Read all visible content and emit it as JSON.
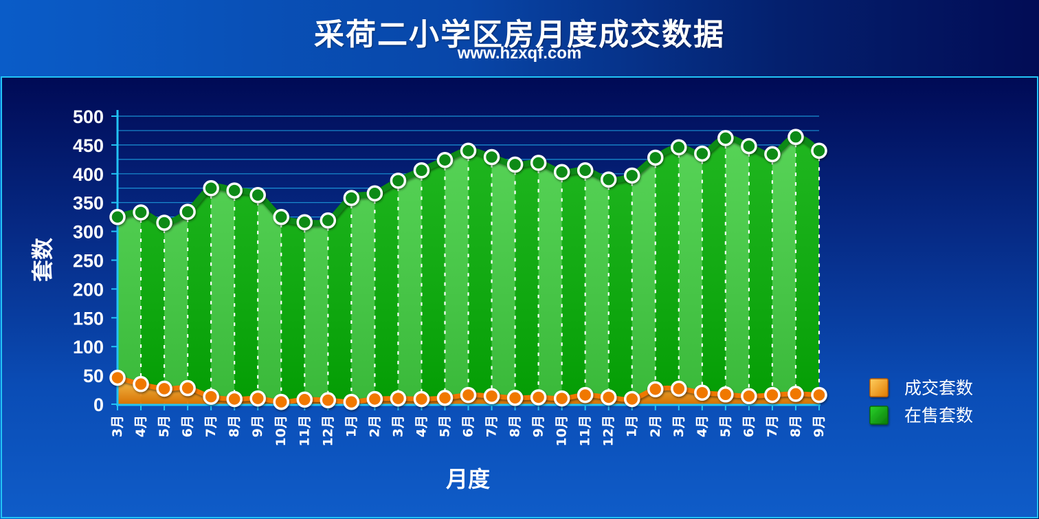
{
  "header": {
    "title": "采荷二小学区房月度成交数据",
    "subtitle": "www.hzxqf.com"
  },
  "chart_data": {
    "type": "area",
    "categories": [
      "3月",
      "4月",
      "5月",
      "6月",
      "7月",
      "8月",
      "9月",
      "10月",
      "11月",
      "12月",
      "1月",
      "2月",
      "3月",
      "4月",
      "5月",
      "6月",
      "7月",
      "8月",
      "9月",
      "10月",
      "11月",
      "12月",
      "1月",
      "2月",
      "3月",
      "4月",
      "5月",
      "6月",
      "7月",
      "8月",
      "9月"
    ],
    "series": [
      {
        "name": "成交套数",
        "color": "#f08a0a",
        "values": [
          46,
          35,
          27,
          28,
          13,
          9,
          10,
          4,
          8,
          7,
          4,
          9,
          10,
          9,
          11,
          16,
          14,
          11,
          12,
          10,
          16,
          12,
          9,
          26,
          27,
          20,
          17,
          14,
          16,
          18,
          16
        ]
      },
      {
        "name": "在售套数",
        "color": "#0aa00a",
        "values": [
          325,
          333,
          315,
          334,
          375,
          371,
          363,
          325,
          316,
          319,
          358,
          366,
          388,
          406,
          424,
          440,
          429,
          416,
          419,
          403,
          406,
          390,
          397,
          428,
          446,
          435,
          462,
          448,
          434,
          464,
          440
        ]
      }
    ],
    "xlabel": "月度",
    "ylabel": "套数",
    "ylim": [
      0,
      500
    ],
    "yticks": [
      0,
      50,
      100,
      150,
      200,
      250,
      300,
      350,
      400,
      450,
      500
    ],
    "grid": true,
    "legend_position": "right"
  }
}
